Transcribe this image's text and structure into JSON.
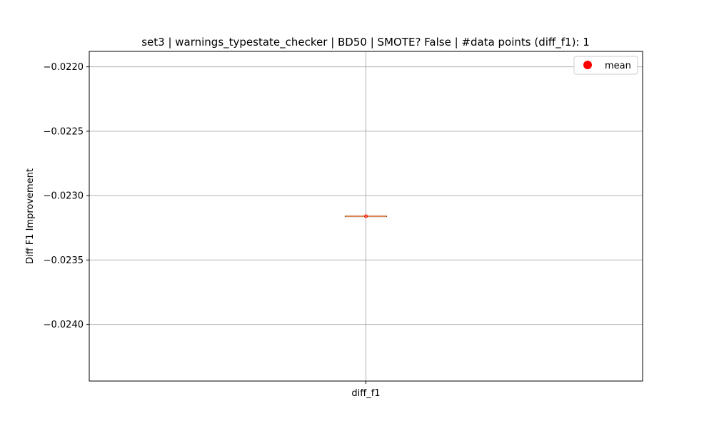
{
  "chart_data": {
    "type": "box",
    "title": "set3 | warnings_typestate_checker | BD50 | SMOTE? False | #data points (diff_f1): 1",
    "xlabel": "",
    "ylabel": "Diff F1 Improvement",
    "categories": [
      "diff_f1"
    ],
    "series": [
      {
        "name": "diff_f1",
        "values": [
          -0.02316
        ],
        "median": -0.02316,
        "q1": -0.02316,
        "q3": -0.02316,
        "whisker_low": -0.02316,
        "whisker_high": -0.02316
      }
    ],
    "mean": {
      "name": "mean",
      "values": [
        -0.02316
      ]
    },
    "ylim": [
      -0.02444,
      -0.02188
    ],
    "yticks": [
      -0.022,
      -0.0225,
      -0.023,
      -0.0235,
      -0.024
    ],
    "ytick_labels": [
      "−0.0220",
      "−0.0225",
      "−0.0230",
      "−0.0235",
      "−0.0240"
    ],
    "grid": true,
    "legend": {
      "placement": "top-right",
      "entries": [
        {
          "label": "mean",
          "color": "#ff0000"
        }
      ]
    },
    "colors": {
      "median": "#dd8452",
      "box": "#000000",
      "mean_marker": "#ff0000",
      "grid": "#b0b0b0"
    }
  }
}
